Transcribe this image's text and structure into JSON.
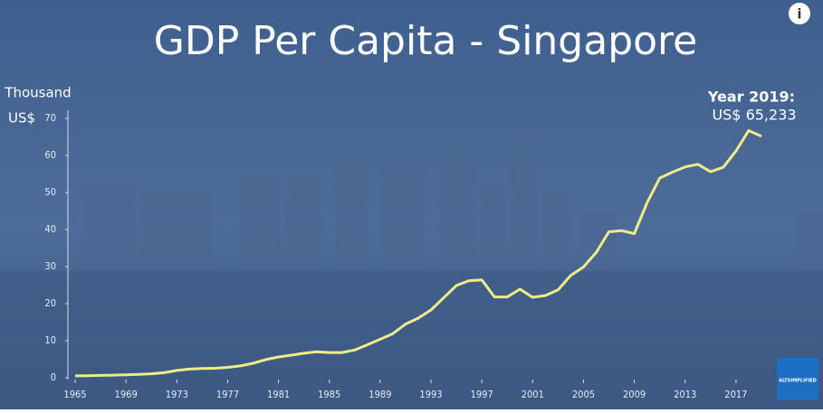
{
  "chart_data": {
    "type": "line",
    "title": "GDP Per Capita - Singapore",
    "y_label": [
      "Thousand",
      "US$"
    ],
    "annotation": [
      "Year 2019:",
      "US$ 65,233"
    ],
    "x": [
      1965,
      1966,
      1967,
      1968,
      1969,
      1970,
      1971,
      1972,
      1973,
      1974,
      1975,
      1976,
      1977,
      1978,
      1979,
      1980,
      1981,
      1982,
      1983,
      1984,
      1985,
      1986,
      1987,
      1988,
      1989,
      1990,
      1991,
      1992,
      1993,
      1994,
      1995,
      1996,
      1997,
      1998,
      1999,
      2000,
      2001,
      2002,
      2003,
      2004,
      2005,
      2006,
      2007,
      2008,
      2009,
      2010,
      2011,
      2012,
      2013,
      2014,
      2015,
      2016,
      2017,
      2018,
      2019
    ],
    "values": [
      0.5,
      0.57,
      0.63,
      0.71,
      0.81,
      0.93,
      1.07,
      1.36,
      1.97,
      2.34,
      2.49,
      2.57,
      2.8,
      3.2,
      3.9,
      4.9,
      5.6,
      6.1,
      6.6,
      7.0,
      6.8,
      6.8,
      7.5,
      8.9,
      10.4,
      11.9,
      14.5,
      16.1,
      18.3,
      21.6,
      24.9,
      26.2,
      26.4,
      21.8,
      21.8,
      23.9,
      21.7,
      22.2,
      23.7,
      27.6,
      29.9,
      33.8,
      39.4,
      39.7,
      38.9,
      47.2,
      53.9,
      55.5,
      56.9,
      57.6,
      55.6,
      56.8,
      61.2,
      66.7,
      65.2
    ],
    "color": "#eeec86",
    "xlim": [
      1964.5,
      2020
    ],
    "xticks": [
      1965,
      1969,
      1973,
      1977,
      1981,
      1985,
      1989,
      1993,
      1997,
      2001,
      2005,
      2009,
      2013,
      2017
    ],
    "ylim": [
      0,
      70
    ],
    "yticks": [
      0,
      10,
      20,
      30,
      40,
      50,
      60,
      70
    ]
  },
  "info_button": "i",
  "logo_text": "ALTSIMPLIFIED"
}
